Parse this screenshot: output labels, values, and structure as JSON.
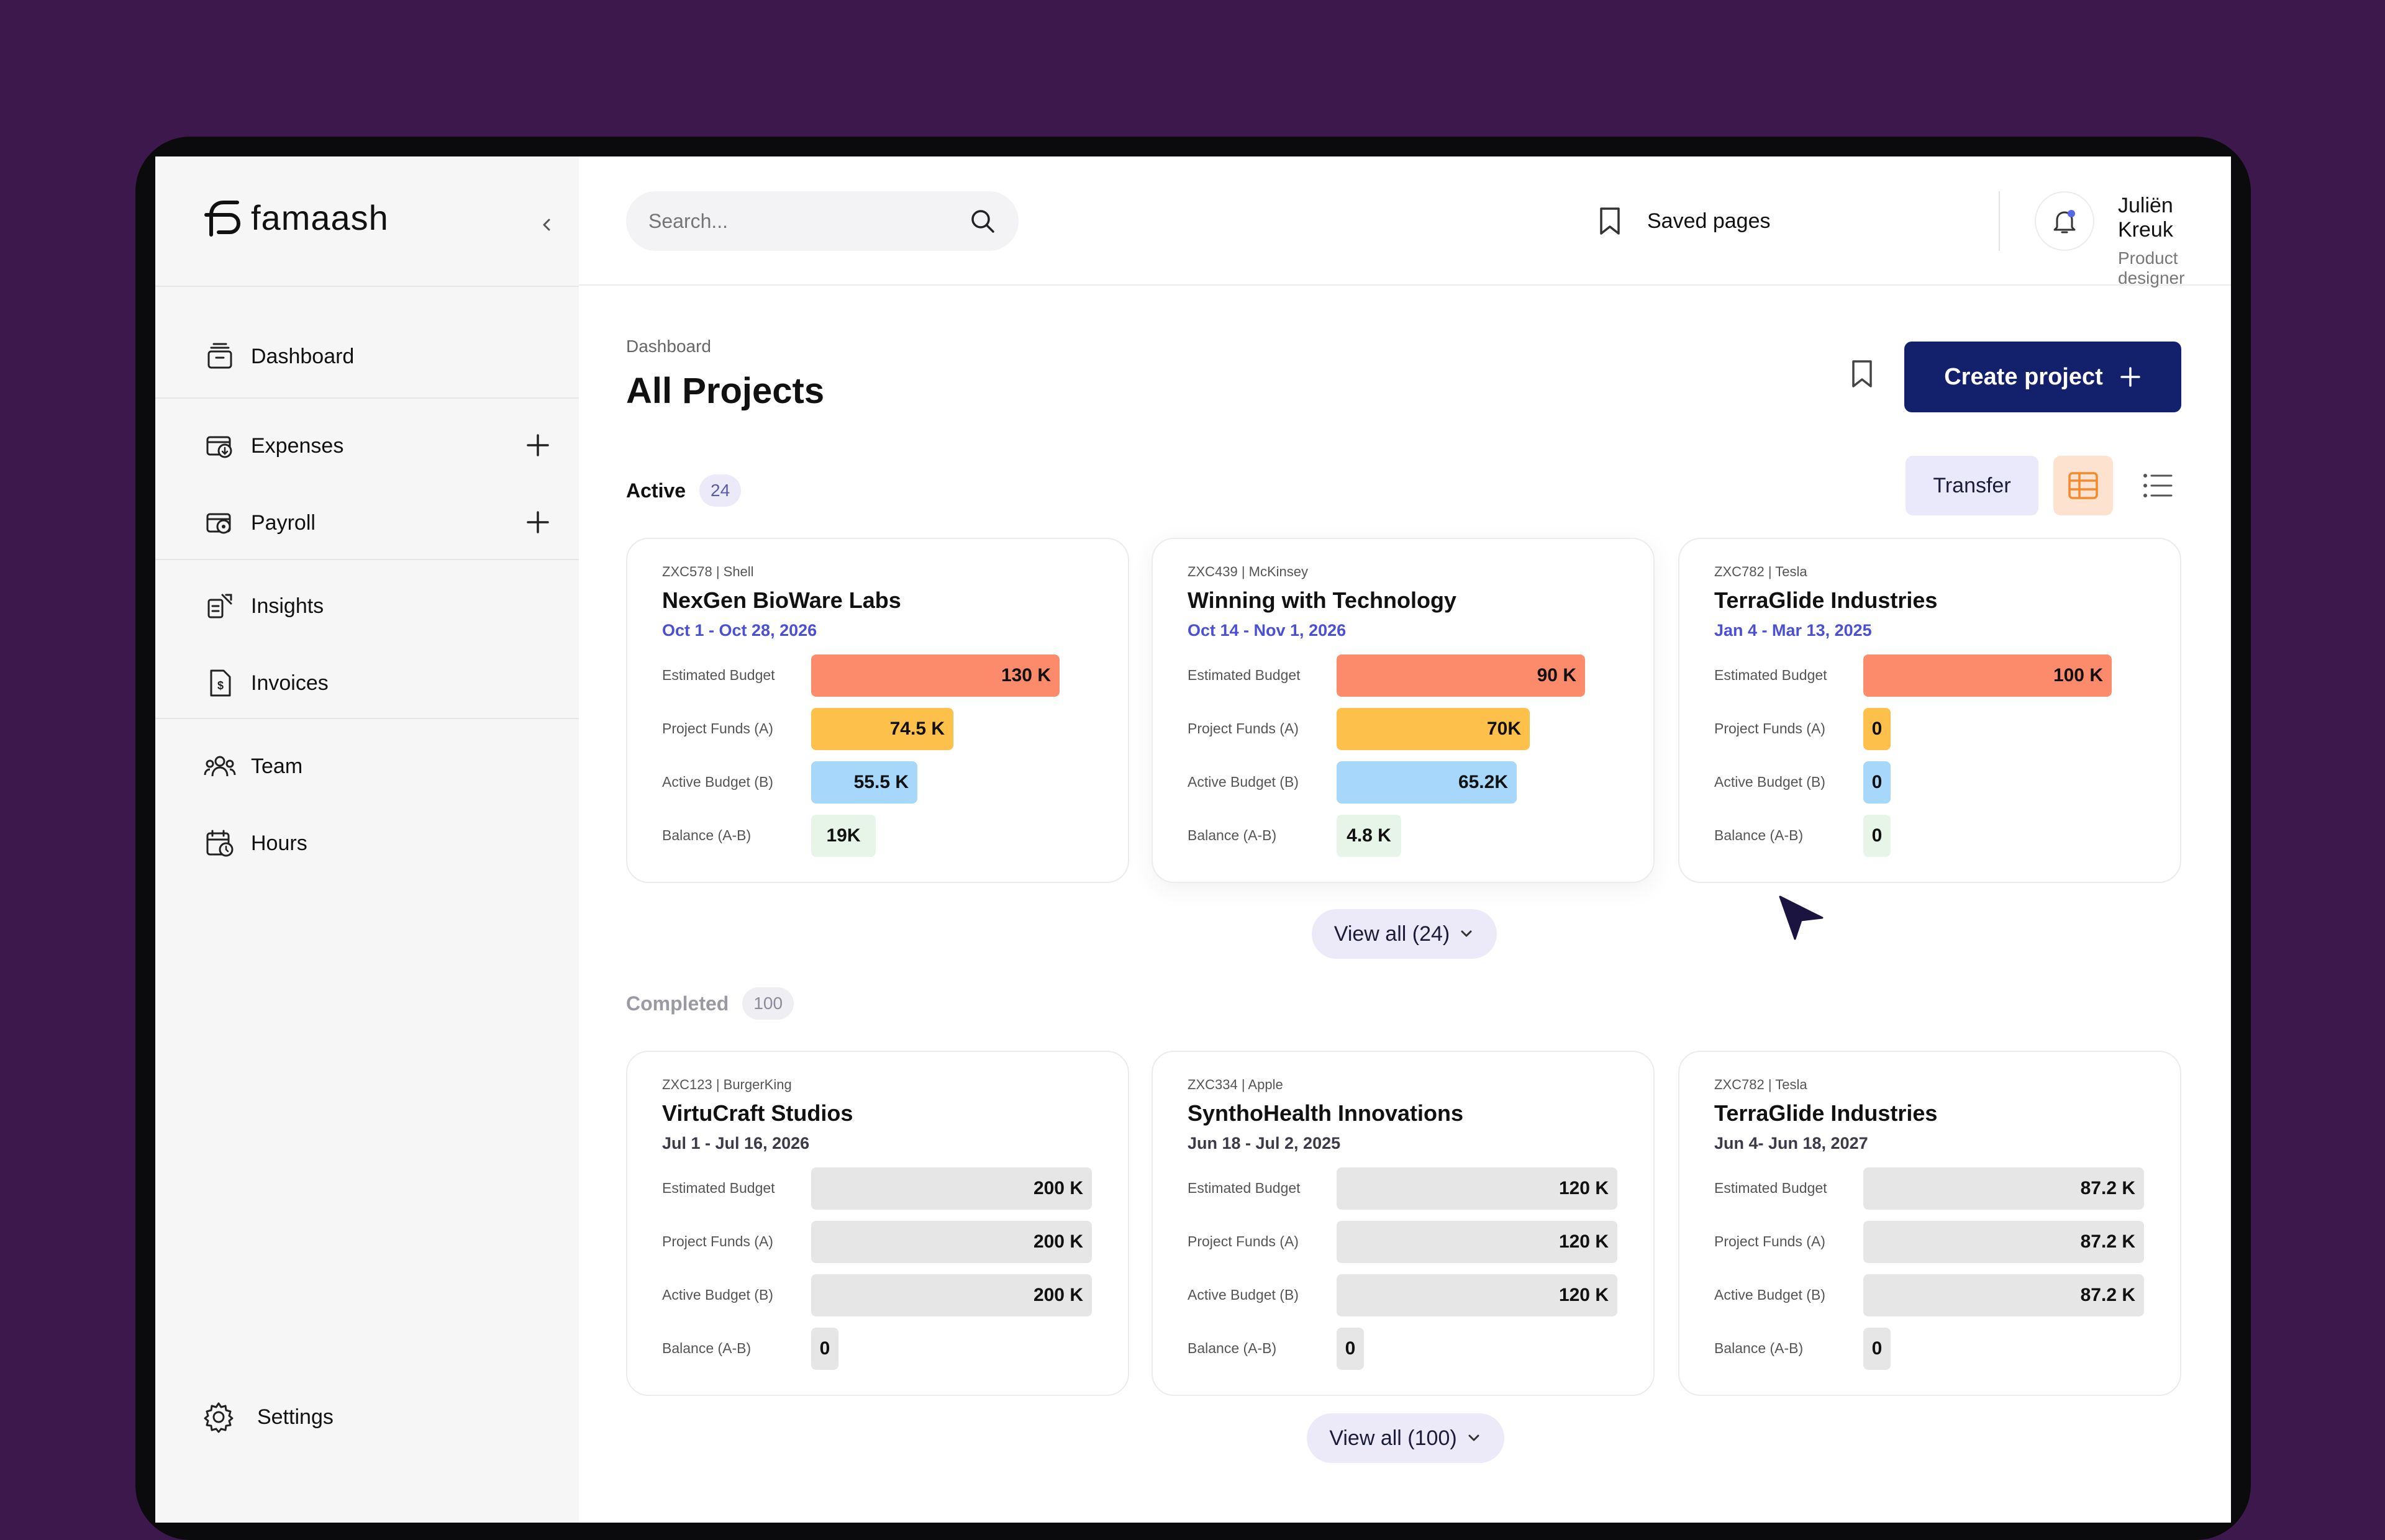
{
  "app": {
    "brand": "famaash"
  },
  "sidebar": {
    "items": [
      {
        "label": "Dashboard",
        "icon": "dashboard-icon"
      },
      {
        "label": "Expenses",
        "icon": "expenses-icon"
      },
      {
        "label": "Payroll",
        "icon": "payroll-icon"
      },
      {
        "label": "Insights",
        "icon": "insights-icon"
      },
      {
        "label": "Invoices",
        "icon": "invoice-icon"
      },
      {
        "label": "Team",
        "icon": "team-icon"
      },
      {
        "label": "Hours",
        "icon": "hours-icon"
      }
    ],
    "settings_label": "Settings"
  },
  "topbar": {
    "search_placeholder": "Search...",
    "saved_label": "Saved pages",
    "user_name": "Juliën Kreuk",
    "user_role": "Product designer"
  },
  "page": {
    "breadcrumb": "Dashboard",
    "title": "All Projects",
    "create_label": "Create project",
    "transfer_label": "Transfer"
  },
  "active": {
    "label": "Active",
    "count": "24",
    "view_all": "View all (24)",
    "cards": [
      {
        "code": "ZXC578 | Shell",
        "name": "NexGen BioWare Labs",
        "dates": "Oct 1 - Oct 28, 2026",
        "rows": [
          {
            "label": "Estimated Budget",
            "value": "130 K",
            "fraction": 1.0
          },
          {
            "label": "Project Funds (A)",
            "value": "74.5 K",
            "fraction": 0.573
          },
          {
            "label": "Active Budget (B)",
            "value": "55.5 K",
            "fraction": 0.427
          },
          {
            "label": "Balance (A-B)",
            "value": "19K",
            "fraction": 0.146
          }
        ]
      },
      {
        "code": "ZXC439 | McKinsey",
        "name": "Winning with Technology",
        "dates": "Oct 14 - Nov 1, 2026",
        "rows": [
          {
            "label": "Estimated Budget",
            "value": "90 K",
            "fraction": 1.0
          },
          {
            "label": "Project Funds (A)",
            "value": "70K",
            "fraction": 0.778
          },
          {
            "label": "Active Budget (B)",
            "value": "65.2K",
            "fraction": 0.724
          },
          {
            "label": "Balance (A-B)",
            "value": "4.8 K",
            "fraction": 0.053
          }
        ]
      },
      {
        "code": "ZXC782 | Tesla",
        "name": "TerraGlide Industries",
        "dates": "Jan 4 - Mar 13, 2025",
        "rows": [
          {
            "label": "Estimated Budget",
            "value": "100 K",
            "fraction": 1.0
          },
          {
            "label": "Project Funds (A)",
            "value": "0",
            "fraction": 0
          },
          {
            "label": "Active Budget (B)",
            "value": "0",
            "fraction": 0
          },
          {
            "label": "Balance (A-B)",
            "value": "0",
            "fraction": 0
          }
        ]
      }
    ]
  },
  "completed": {
    "label": "Completed",
    "count": "100",
    "view_all": "View all (100)",
    "cards": [
      {
        "code": "ZXC123 | BurgerKing",
        "name": "VirtuCraft Studios",
        "dates": "Jul 1 - Jul 16, 2026",
        "rows": [
          {
            "label": "Estimated Budget",
            "value": "200 K",
            "fraction": 1.0
          },
          {
            "label": "Project Funds (A)",
            "value": "200 K",
            "fraction": 1.0
          },
          {
            "label": "Active Budget (B)",
            "value": "200 K",
            "fraction": 1.0
          },
          {
            "label": "Balance (A-B)",
            "value": "0",
            "fraction": 0
          }
        ]
      },
      {
        "code": "ZXC334 | Apple",
        "name": "SynthoHealth Innovations",
        "dates": "Jun 18 - Jul 2, 2025",
        "rows": [
          {
            "label": "Estimated Budget",
            "value": "120 K",
            "fraction": 1.0
          },
          {
            "label": "Project Funds (A)",
            "value": "120 K",
            "fraction": 1.0
          },
          {
            "label": "Active Budget (B)",
            "value": "120 K",
            "fraction": 1.0
          },
          {
            "label": "Balance (A-B)",
            "value": "0",
            "fraction": 0
          }
        ]
      },
      {
        "code": "ZXC782 | Tesla",
        "name": "TerraGlide Industries",
        "dates": "Jun 4- Jun 18, 2027",
        "rows": [
          {
            "label": "Estimated Budget",
            "value": "87.2 K",
            "fraction": 1.0
          },
          {
            "label": "Project Funds (A)",
            "value": "87.2 K",
            "fraction": 1.0
          },
          {
            "label": "Active Budget (B)",
            "value": "87.2 K",
            "fraction": 1.0
          },
          {
            "label": "Balance (A-B)",
            "value": "0",
            "fraction": 0
          }
        ]
      }
    ]
  },
  "colors": {
    "background": "#3d184c",
    "primary": "#13206b",
    "estimated": "#fb8b6a",
    "funds": "#fdc04a",
    "active": "#a7d8fb",
    "balance": "#e6f5e8",
    "completed_bar": "#e6e6e6",
    "active_date": "#4a4fd6",
    "completed_date": "#3a3a48"
  }
}
